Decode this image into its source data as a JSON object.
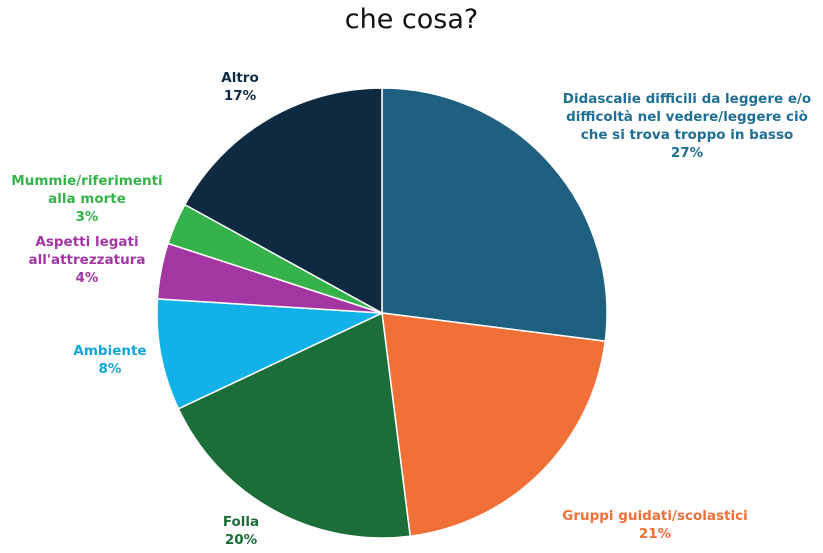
{
  "chart_data": {
    "type": "pie",
    "title": "che cosa?",
    "start_angle_deg": 0,
    "direction": "clockwise",
    "legend": "none",
    "slices": [
      {
        "label": "Didascalie difficili da leggere e/o difficoltà nel vedere/leggere ciò che si trova troppo in basso",
        "label_lines": [
          "Didascalie difficili da leggere e/o",
          "difficoltà nel vedere/leggere ciò",
          "che si trova troppo in basso"
        ],
        "value": 27,
        "value_label": "27%",
        "color": "#1f5f80",
        "label_color": "#1f6e93"
      },
      {
        "label": "Gruppi guidati/scolastici",
        "label_lines": [
          "Gruppi guidati/scolastici"
        ],
        "value": 21,
        "value_label": "21%",
        "color": "#f07038",
        "label_color": "#f07038"
      },
      {
        "label": "Folla",
        "label_lines": [
          "Folla"
        ],
        "value": 20,
        "value_label": "20%",
        "color": "#1b6e38",
        "label_color": "#1b6e38"
      },
      {
        "label": "Ambiente",
        "label_lines": [
          "Ambiente"
        ],
        "value": 8,
        "value_label": "8%",
        "color": "#12b1e8",
        "label_color": "#12a6d8"
      },
      {
        "label": "Aspetti legati all'attrezzatura",
        "label_lines": [
          "Aspetti legati",
          "all'attrezzatura"
        ],
        "value": 4,
        "value_label": "4%",
        "color": "#a436a4",
        "label_color": "#a436a4"
      },
      {
        "label": "Mummie/riferimenti alla morte",
        "label_lines": [
          "Mummie/riferimenti",
          "alla morte"
        ],
        "value": 3,
        "value_label": "3%",
        "color": "#36b24a",
        "label_color": "#36b24a"
      },
      {
        "label": "Altro",
        "label_lines": [
          "Altro"
        ],
        "value": 17,
        "value_label": "17%",
        "color": "#0e2a40",
        "label_color": "#0e2a40"
      }
    ]
  }
}
